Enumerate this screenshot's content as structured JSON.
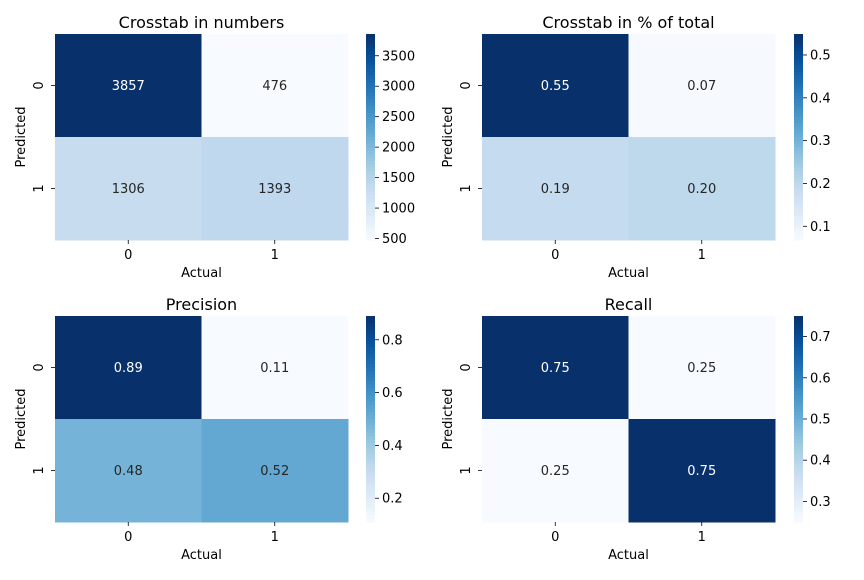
{
  "chart_data": [
    {
      "type": "heatmap",
      "title": "Crosstab in numbers",
      "xlabel": "Actual",
      "ylabel": "Predicted",
      "x_categories": [
        "0",
        "1"
      ],
      "y_categories": [
        "0",
        "1"
      ],
      "values": [
        [
          3857,
          476
        ],
        [
          1306,
          1393
        ]
      ],
      "cell_labels": [
        [
          "3857",
          "476"
        ],
        [
          "1306",
          "1393"
        ]
      ],
      "colormap": "Blues",
      "vmin": 476,
      "vmax": 3857,
      "colorbar_ticks": [
        500,
        1000,
        1500,
        2000,
        2500,
        3000,
        3500
      ],
      "colorbar_tick_labels": [
        "500",
        "1000",
        "1500",
        "2000",
        "2500",
        "3000",
        "3500"
      ]
    },
    {
      "type": "heatmap",
      "title": "Crosstab in % of total",
      "xlabel": "Actual",
      "ylabel": "Predicted",
      "x_categories": [
        "0",
        "1"
      ],
      "y_categories": [
        "0",
        "1"
      ],
      "values": [
        [
          0.55,
          0.07
        ],
        [
          0.19,
          0.2
        ]
      ],
      "cell_labels": [
        [
          "0.55",
          "0.07"
        ],
        [
          "0.19",
          "0.20"
        ]
      ],
      "colormap": "Blues",
      "vmin": 0.068,
      "vmax": 0.549,
      "colorbar_ticks": [
        0.1,
        0.2,
        0.3,
        0.4,
        0.5
      ],
      "colorbar_tick_labels": [
        "0.1",
        "0.2",
        "0.3",
        "0.4",
        "0.5"
      ]
    },
    {
      "type": "heatmap",
      "title": "Precision",
      "xlabel": "Actual",
      "ylabel": "Predicted",
      "x_categories": [
        "0",
        "1"
      ],
      "y_categories": [
        "0",
        "1"
      ],
      "values": [
        [
          0.89,
          0.11
        ],
        [
          0.48,
          0.52
        ]
      ],
      "cell_labels": [
        [
          "0.89",
          "0.11"
        ],
        [
          "0.48",
          "0.52"
        ]
      ],
      "colormap": "Blues",
      "vmin": 0.11,
      "vmax": 0.89,
      "colorbar_ticks": [
        0.2,
        0.4,
        0.6,
        0.8
      ],
      "colorbar_tick_labels": [
        "0.2",
        "0.4",
        "0.6",
        "0.8"
      ]
    },
    {
      "type": "heatmap",
      "title": "Recall",
      "xlabel": "Actual",
      "ylabel": "Predicted",
      "x_categories": [
        "0",
        "1"
      ],
      "y_categories": [
        "0",
        "1"
      ],
      "values": [
        [
          0.75,
          0.25
        ],
        [
          0.25,
          0.75
        ]
      ],
      "cell_labels": [
        [
          "0.75",
          "0.25"
        ],
        [
          "0.25",
          "0.75"
        ]
      ],
      "colormap": "Blues",
      "vmin": 0.25,
      "vmax": 0.75,
      "colorbar_ticks": [
        0.3,
        0.4,
        0.5,
        0.6,
        0.7
      ],
      "colorbar_tick_labels": [
        "0.3",
        "0.4",
        "0.5",
        "0.6",
        "0.7"
      ]
    }
  ]
}
